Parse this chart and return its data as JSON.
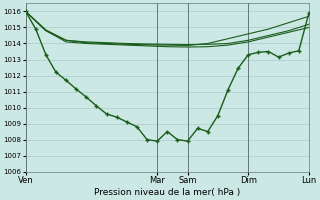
{
  "bg_color": "#cce8e4",
  "grid_color": "#aacccc",
  "line_color": "#1a5c1a",
  "xlabel": "Pression niveau de la mer( hPa )",
  "ylim": [
    1006,
    1016.5
  ],
  "yticks": [
    1006,
    1007,
    1008,
    1009,
    1010,
    1011,
    1012,
    1013,
    1014,
    1015,
    1016
  ],
  "day_labels": [
    "Ven",
    "Mar",
    "Sam",
    "Dim",
    "Lun"
  ],
  "day_positions": [
    0,
    13,
    16,
    22,
    28
  ],
  "xlim": [
    0,
    28
  ],
  "series1_x": [
    0,
    2,
    4,
    6,
    8,
    10,
    12,
    14,
    16,
    18,
    20,
    22,
    24,
    26,
    28
  ],
  "series1": [
    1016.0,
    1014.8,
    1014.1,
    1014.0,
    1013.95,
    1013.9,
    1013.85,
    1013.8,
    1013.78,
    1013.8,
    1013.9,
    1014.1,
    1014.4,
    1014.7,
    1015.0
  ],
  "series2_x": [
    0,
    2,
    4,
    6,
    8,
    10,
    12,
    14,
    16,
    18,
    20,
    22,
    24,
    26,
    28
  ],
  "series2": [
    1016.0,
    1014.8,
    1014.2,
    1014.05,
    1014.0,
    1013.95,
    1013.92,
    1013.9,
    1013.88,
    1014.0,
    1014.3,
    1014.6,
    1014.9,
    1015.3,
    1015.7
  ],
  "series3_x": [
    0,
    1,
    2,
    3,
    4,
    5,
    6,
    7,
    8,
    9,
    10,
    11,
    12,
    13,
    14,
    15,
    16,
    17,
    18,
    19,
    20,
    21,
    22,
    23,
    24,
    25,
    26,
    27,
    28
  ],
  "series3": [
    1016.0,
    1014.9,
    1013.3,
    1012.2,
    1011.7,
    1011.15,
    1010.65,
    1010.1,
    1009.6,
    1009.4,
    1009.1,
    1008.8,
    1008.0,
    1007.9,
    1008.5,
    1008.0,
    1007.9,
    1008.7,
    1008.5,
    1009.5,
    1011.1,
    1012.45,
    1013.3,
    1013.45,
    1013.5,
    1013.15,
    1013.4,
    1013.55,
    1015.9
  ],
  "series4_x": [
    0,
    2,
    4,
    6,
    8,
    10,
    12,
    14,
    16,
    18,
    20,
    22,
    24,
    26,
    28
  ],
  "series4": [
    1016.0,
    1014.85,
    1014.2,
    1014.1,
    1014.05,
    1014.0,
    1013.97,
    1013.95,
    1013.93,
    1013.95,
    1014.0,
    1014.2,
    1014.5,
    1014.8,
    1015.2
  ]
}
